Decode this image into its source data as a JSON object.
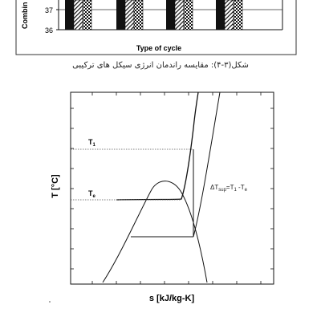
{
  "top_chart": {
    "y_axis_label": "Combin",
    "y_ticks": [
      "37",
      "36"
    ],
    "x_axis_label": "Type of cycle",
    "bar_patterns": [
      "solid-black",
      "diagonal-hatch",
      "checkered"
    ]
  },
  "caption": "شکل(۳-۴): مقایسه راندمان انرژی سیکل های ترکیبی",
  "ts_diagram": {
    "y_axis_label": "T [°C]",
    "x_axis_label": "s [kJ/kg-K]",
    "t1_label": "T",
    "t1_subscript": "1",
    "te_label": "T",
    "te_subscript": "e",
    "annotation": {
      "prefix": "ΔT",
      "sub1": "sup",
      "mid": "=T",
      "sub2": "1",
      "mid2": " -T",
      "sub3": "e"
    }
  }
}
